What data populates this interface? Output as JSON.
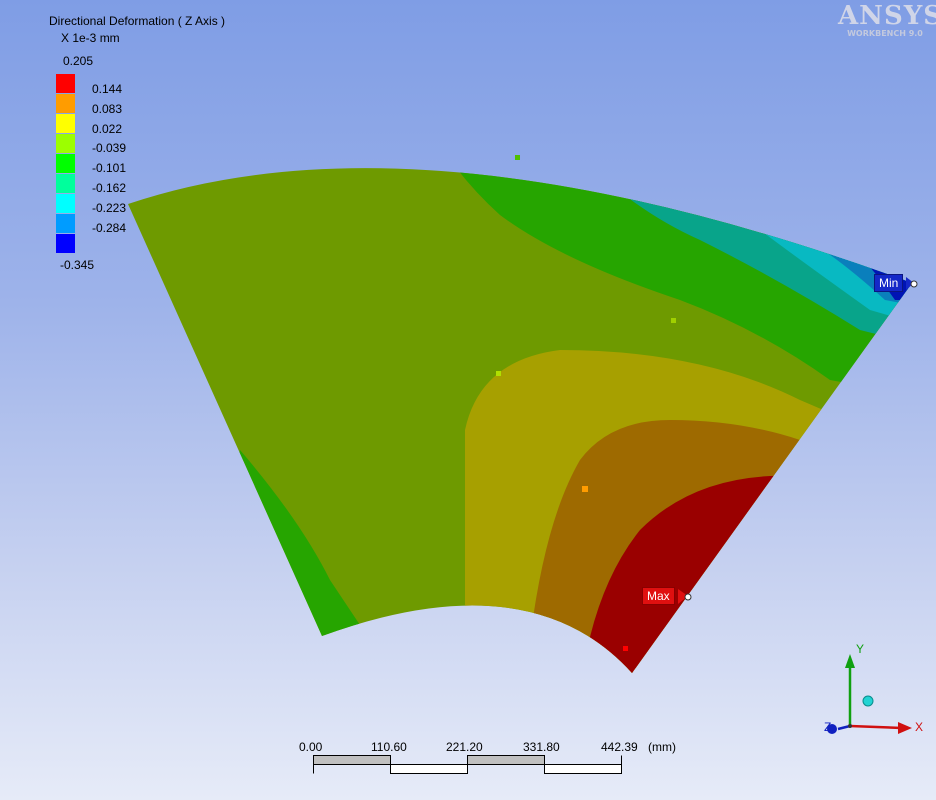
{
  "legend": {
    "title": "Directional Deformation ( Z Axis )",
    "unit": "X 1e-3 mm",
    "top_value": "0.205",
    "bottom_value": "-0.345",
    "bands": [
      {
        "label": "0.144",
        "color": "#ff0000"
      },
      {
        "label": "0.083",
        "color": "#ff9c00"
      },
      {
        "label": "0.022",
        "color": "#ffff00"
      },
      {
        "label": "-0.039",
        "color": "#9cff00"
      },
      {
        "label": "-0.101",
        "color": "#00ff00"
      },
      {
        "label": "-0.162",
        "color": "#00ff9c"
      },
      {
        "label": "-0.223",
        "color": "#00ffff"
      },
      {
        "label": "-0.284",
        "color": "#009cff"
      },
      {
        "label": "",
        "color": "#0000ff"
      }
    ]
  },
  "logo": {
    "main": "ANSYS",
    "sub": "WORKBENCH 9.0"
  },
  "probes": {
    "min": "Min",
    "max": "Max"
  },
  "scale_bar": {
    "ticks": [
      "0.00",
      "110.60",
      "221.20",
      "331.80",
      "442.39"
    ],
    "unit": "(mm)"
  },
  "triad": {
    "x": "X",
    "y": "Y",
    "z": "Z"
  }
}
